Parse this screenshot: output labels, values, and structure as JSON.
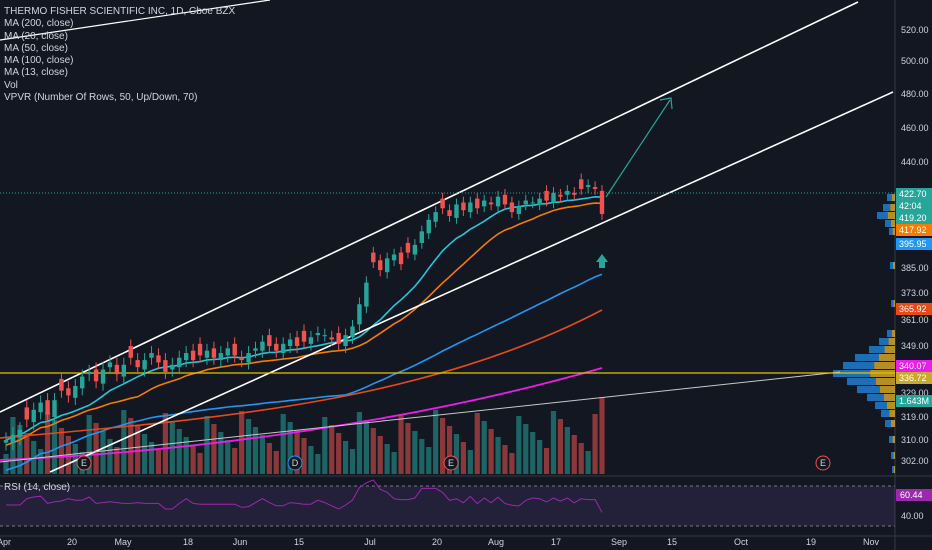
{
  "legend": {
    "title": "THERMO FISHER SCIENTIFIC INC, 1D, Cboe BZX",
    "studies": [
      "MA (200, close)",
      "MA (20, close)",
      "MA (50, close)",
      "MA (100, close)",
      "MA (13, close)",
      "Vol",
      "VPVR (Number Of Rows, 50, Up/Down, 70)"
    ]
  },
  "rsi_label": "RSI (14, close)",
  "colors": {
    "background": "#131722",
    "up": "#26a69a",
    "down": "#ef5350",
    "ma13": "#26c6da",
    "ma20": "#f57c00",
    "ma50": "#2196f3",
    "ma100": "#e64a19",
    "ma200": "#e91ee9",
    "channel": "#ffffff",
    "hline": "#e0c600",
    "rsi": "#9c27b0"
  },
  "chart_data": {
    "type": "candlestick",
    "title": "THERMO FISHER SCIENTIFIC INC, 1D, Cboe BZX",
    "y_axis_ticks": [
      "520.00",
      "500.00",
      "480.00",
      "460.00",
      "440.00",
      "385.00",
      "373.00",
      "361.00",
      "349.00",
      "329.00",
      "319.00",
      "310.00",
      "302.00"
    ],
    "x_axis_ticks": [
      "Apr",
      "20",
      "May",
      "18",
      "Jun",
      "15",
      "Jul",
      "20",
      "Aug",
      "17",
      "Sep",
      "15",
      "Oct",
      "19",
      "Nov"
    ],
    "price_badges": [
      {
        "text": "422.70",
        "color": "#26a69a"
      },
      {
        "text": "42:04",
        "color": "#26a69a"
      },
      {
        "text": "419.20",
        "color": "#26a69a"
      },
      {
        "text": "417.92",
        "color": "#f57c00"
      },
      {
        "text": "395.95",
        "color": "#2196f3"
      },
      {
        "text": "365.92",
        "color": "#e64a19"
      },
      {
        "text": "340.07",
        "color": "#e91ee9"
      },
      {
        "text": "336.72",
        "color": "#c9a82c"
      },
      {
        "text": "1.643M",
        "color": "#26a69a"
      }
    ],
    "event_markers": [
      "E",
      "D",
      "E",
      "E"
    ],
    "rsi": {
      "value": "60.44",
      "ticks": [
        "40.00"
      ]
    },
    "closes": [
      310,
      312,
      314,
      318,
      322,
      325,
      320,
      326,
      330,
      328,
      332,
      336,
      338,
      334,
      339,
      342,
      337,
      341,
      344,
      340,
      343,
      346,
      342,
      338,
      341,
      344,
      346,
      343,
      345,
      347,
      344,
      346,
      348,
      345,
      343,
      346,
      348,
      351,
      349,
      347,
      350,
      352,
      349,
      351,
      353,
      355,
      354,
      352,
      350,
      354,
      358,
      368,
      378,
      388,
      384,
      390,
      392,
      387,
      393,
      397,
      404,
      410,
      414,
      416,
      412,
      418,
      415,
      419,
      416,
      420,
      418,
      422,
      418,
      414,
      417,
      420,
      419,
      421,
      420,
      424,
      422,
      425,
      423,
      426,
      428,
      426,
      413
    ]
  }
}
